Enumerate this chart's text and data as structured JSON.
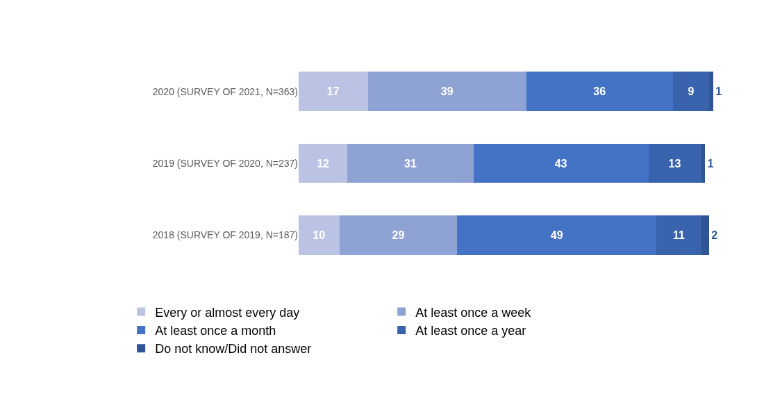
{
  "chart_data": {
    "type": "bar",
    "orientation": "horizontal",
    "stacked": true,
    "data_labels": true,
    "legend": "bottom",
    "categories": [
      "2020 (SURVEY OF 2021, N=363)",
      "2019 (SURVEY OF 2020, N=237)",
      "2018 (SURVEY OF 2019, N=187)"
    ],
    "series": [
      {
        "name": "Every or almost every day",
        "color": "#bac3e3",
        "values": [
          17,
          12,
          10
        ]
      },
      {
        "name": "At least once a week",
        "color": "#8fa2d4",
        "values": [
          39,
          31,
          29
        ]
      },
      {
        "name": "At least once a month",
        "color": "#4472c4",
        "values": [
          36,
          43,
          49
        ]
      },
      {
        "name": "At least once a year",
        "color": "#3a63ae",
        "values": [
          9,
          13,
          11
        ]
      },
      {
        "name": "Do not know/Did not answer",
        "color": "#2f5597",
        "values": [
          1,
          1,
          2
        ]
      }
    ]
  }
}
